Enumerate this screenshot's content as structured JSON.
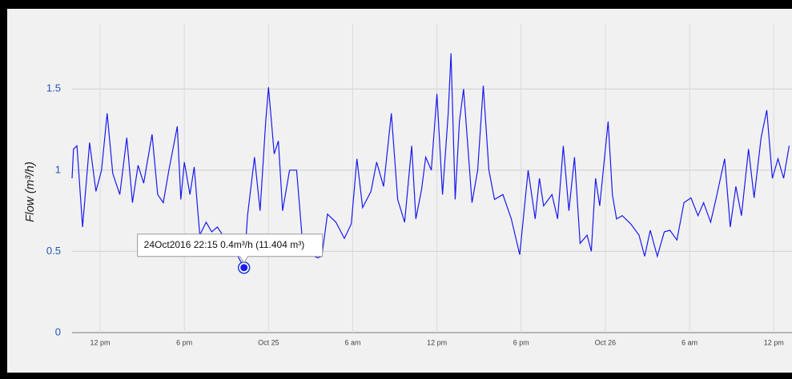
{
  "chart_data": {
    "type": "line",
    "y_label": "Flow (m³/h)",
    "tooltip": "24Oct2016 22:15 0.4m³/h (11.404 m³)",
    "color": "#1a1aee",
    "x": [
      10.0,
      10.1,
      10.35,
      10.75,
      11.25,
      11.7,
      12.1,
      12.5,
      12.9,
      13.4,
      13.9,
      14.3,
      14.7,
      15.1,
      15.7,
      16.1,
      16.5,
      16.9,
      17.5,
      17.75,
      18.0,
      18.4,
      18.7,
      19.1,
      19.55,
      19.95,
      20.35,
      20.9,
      21.5,
      22.25,
      22.5,
      23.0,
      23.4,
      23.8,
      24.0,
      24.4,
      24.7,
      25.0,
      25.5,
      26.0,
      26.5,
      27.0,
      27.5,
      27.8,
      28.2,
      28.8,
      29.4,
      29.9,
      30.3,
      30.7,
      31.3,
      31.7,
      32.2,
      32.75,
      33.2,
      33.7,
      34.2,
      34.5,
      34.9,
      35.2,
      35.6,
      36.0,
      36.4,
      36.8,
      37.0,
      37.3,
      37.6,
      37.9,
      38.5,
      38.9,
      39.3,
      39.7,
      40.1,
      40.7,
      41.3,
      41.9,
      42.5,
      43.0,
      43.3,
      43.6,
      44.2,
      44.6,
      45.0,
      45.4,
      45.8,
      46.2,
      46.7,
      47.0,
      47.3,
      47.6,
      48.2,
      48.5,
      48.8,
      49.2,
      49.8,
      50.4,
      50.8,
      51.2,
      51.7,
      52.2,
      52.6,
      53.1,
      53.6,
      54.1,
      54.6,
      55.0,
      55.5,
      55.9,
      56.5,
      56.9,
      57.3,
      57.7,
      58.2,
      58.6,
      59.1,
      59.5,
      59.9,
      60.3,
      60.7,
      61.1
    ],
    "values": [
      0.95,
      1.13,
      1.15,
      0.65,
      1.17,
      0.87,
      1.0,
      1.35,
      0.98,
      0.85,
      1.2,
      0.8,
      1.03,
      0.92,
      1.22,
      0.85,
      0.8,
      1.0,
      1.27,
      0.82,
      1.05,
      0.85,
      1.02,
      0.6,
      0.68,
      0.62,
      0.65,
      0.58,
      0.52,
      0.4,
      0.72,
      1.08,
      0.75,
      1.3,
      1.51,
      1.1,
      1.18,
      0.75,
      1.0,
      1.0,
      0.47,
      0.48,
      0.46,
      0.47,
      0.73,
      0.68,
      0.58,
      0.67,
      1.07,
      0.77,
      0.87,
      1.05,
      0.9,
      1.35,
      0.82,
      0.68,
      1.15,
      0.7,
      0.88,
      1.08,
      1.0,
      1.47,
      0.85,
      1.35,
      1.72,
      0.82,
      1.3,
      1.5,
      0.8,
      1.0,
      1.52,
      1.0,
      0.82,
      0.85,
      0.7,
      0.48,
      1.0,
      0.7,
      0.95,
      0.78,
      0.85,
      0.7,
      1.15,
      0.75,
      1.08,
      0.55,
      0.6,
      0.5,
      0.95,
      0.78,
      1.3,
      0.85,
      0.7,
      0.72,
      0.67,
      0.6,
      0.47,
      0.63,
      0.47,
      0.62,
      0.63,
      0.57,
      0.8,
      0.83,
      0.72,
      0.8,
      0.68,
      0.83,
      1.07,
      0.65,
      0.9,
      0.72,
      1.13,
      0.83,
      1.2,
      1.37,
      0.95,
      1.07,
      0.95,
      1.15
    ],
    "xlim": [
      10,
      61.3
    ],
    "xticks": [
      {
        "value": 12,
        "label": "12 pm"
      },
      {
        "value": 18,
        "label": "6 pm"
      },
      {
        "value": 24,
        "label": "Oct 25"
      },
      {
        "value": 30,
        "label": "6 am"
      },
      {
        "value": 36,
        "label": "12 pm"
      },
      {
        "value": 42,
        "label": "6 pm"
      },
      {
        "value": 48,
        "label": "Oct 26"
      },
      {
        "value": 54,
        "label": "6 am"
      },
      {
        "value": 60,
        "label": "12 pm"
      }
    ],
    "ylim": [
      0,
      1.9
    ],
    "yticks": [
      0,
      0.5,
      1,
      1.5
    ],
    "grid": true
  }
}
